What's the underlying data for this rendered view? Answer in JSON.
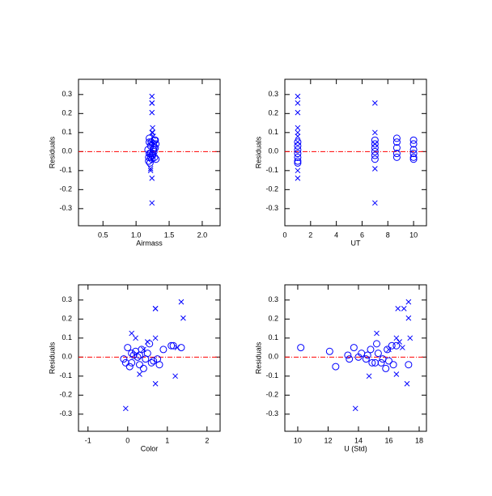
{
  "chart_data": [
    {
      "type": "scatter",
      "xlabel": "Airmass",
      "ylabel": "Residuals",
      "xlim": [
        0.13,
        2.27
      ],
      "ylim": [
        -0.39,
        0.38
      ],
      "xticks": [
        0.5,
        {
          "value": 1,
          "label": "1.0"
        },
        1.5,
        {
          "value": 2,
          "label": "2.0"
        }
      ],
      "yticks": [
        -0.3,
        -0.2,
        -0.1,
        {
          "value": 0,
          "label": "0.0"
        },
        0.1,
        0.2,
        0.3
      ],
      "reference_line": {
        "value": 0,
        "color": "#ff0000"
      },
      "series": [
        {
          "marker": "circle",
          "color": "#0000ff",
          "x": [
            1.2,
            1.22,
            1.18,
            1.2,
            1.22,
            1.19,
            1.21,
            1.28,
            1.26,
            1.29,
            1.27,
            1.25,
            1.3,
            1.2,
            1.23,
            1.27,
            1.25,
            1.19,
            1.29,
            1.3,
            1.26,
            1.22,
            1.28,
            1.24
          ],
          "values": [
            0.05,
            0.03,
            0.01,
            -0.01,
            -0.03,
            -0.05,
            -0.06,
            0.06,
            0.04,
            0.02,
            0,
            -0.02,
            -0.04,
            0.07,
            0.05,
            0.02,
            -0.01,
            -0.03,
            0.06,
            0.04,
            0.01,
            -0.01,
            -0.03,
            -0.04
          ]
        },
        {
          "marker": "x",
          "color": "#0000ff",
          "x": [
            1.24,
            1.24,
            1.24,
            1.25,
            1.24,
            1.26,
            1.23,
            1.22,
            1.24,
            1.24,
            1.25,
            1.22,
            1.24,
            1.28
          ],
          "values": [
            0.29,
            0.255,
            0.205,
            0.125,
            0.1,
            0.08,
            0.05,
            -0.1,
            -0.14,
            0.255,
            0.1,
            -0.09,
            -0.27,
            0.04
          ]
        }
      ]
    },
    {
      "type": "scatter",
      "xlabel": "UT",
      "ylabel": "Residuals",
      "xlim": [
        0,
        11
      ],
      "ylim": [
        -0.39,
        0.38
      ],
      "xticks": [
        0,
        2,
        4,
        6,
        8,
        10
      ],
      "yticks": [
        -0.3,
        -0.2,
        -0.1,
        {
          "value": 0,
          "label": "0.0"
        },
        0.1,
        0.2,
        0.3
      ],
      "reference_line": {
        "value": 0,
        "color": "#ff0000"
      },
      "series": [
        {
          "marker": "circle",
          "color": "#0000ff",
          "x": [
            1,
            1,
            1,
            1,
            1,
            1,
            1,
            7,
            7,
            7,
            7,
            7,
            7,
            8.7,
            8.7,
            8.7,
            8.7,
            8.7,
            10,
            10,
            10,
            10,
            10,
            10
          ],
          "values": [
            0.05,
            0.03,
            0.01,
            -0.01,
            -0.03,
            -0.05,
            -0.06,
            0.06,
            0.04,
            0.02,
            0,
            -0.02,
            -0.04,
            0.07,
            0.05,
            0.02,
            -0.01,
            -0.03,
            0.06,
            0.04,
            0.01,
            -0.01,
            -0.03,
            -0.04
          ]
        },
        {
          "marker": "x",
          "color": "#0000ff",
          "x": [
            1,
            1,
            1,
            1,
            1,
            1,
            1,
            1,
            1,
            7,
            7,
            7,
            7,
            7
          ],
          "values": [
            0.29,
            0.255,
            0.205,
            0.125,
            0.1,
            0.08,
            0.05,
            -0.1,
            -0.14,
            0.255,
            0.1,
            -0.09,
            -0.27,
            0.04
          ]
        }
      ]
    },
    {
      "type": "scatter",
      "xlabel": "Color",
      "ylabel": "Residuals",
      "xlim": [
        -1.24,
        2.33
      ],
      "ylim": [
        -0.39,
        0.38
      ],
      "xticks": [
        -1,
        0,
        1,
        2
      ],
      "yticks": [
        -0.3,
        -0.2,
        -0.1,
        {
          "value": 0,
          "label": "0.0"
        },
        0.1,
        0.2,
        0.3
      ],
      "reference_line": {
        "value": 0,
        "color": "#ff0000"
      },
      "series": [
        {
          "marker": "circle",
          "color": "#0000ff",
          "x": [
            0,
            0.2,
            0.3,
            -0.1,
            0.1,
            0.05,
            0.4,
            1.15,
            0.9,
            0.5,
            0.25,
            0.65,
            0.8,
            0.55,
            1.35,
            0.1,
            0.45,
            0.6,
            1.1,
            0.35,
            0.15,
            0.75,
            -0.05,
            0.3
          ],
          "values": [
            0.05,
            0.03,
            0.01,
            -0.01,
            -0.03,
            -0.05,
            -0.06,
            0.06,
            0.04,
            0.02,
            0,
            -0.02,
            -0.04,
            0.07,
            0.05,
            0.02,
            -0.01,
            -0.03,
            0.06,
            0.04,
            0.01,
            -0.01,
            -0.03,
            -0.04
          ]
        },
        {
          "marker": "x",
          "color": "#0000ff",
          "x": [
            1.35,
            0.7,
            1.4,
            0.1,
            0.7,
            0.5,
            1.25,
            1.2,
            0.7,
            0.7,
            0.2,
            0.3,
            -0.05,
            0.4
          ],
          "values": [
            0.29,
            0.255,
            0.205,
            0.125,
            0.1,
            0.08,
            0.05,
            -0.1,
            -0.14,
            0.255,
            0.1,
            -0.09,
            -0.27,
            0.04
          ]
        }
      ]
    },
    {
      "type": "scatter",
      "xlabel": "U (Std)",
      "ylabel": "Residuals",
      "xlim": [
        9.15,
        18.48
      ],
      "ylim": [
        -0.39,
        0.38
      ],
      "xticks": [
        10,
        12,
        14,
        16,
        18
      ],
      "yticks": [
        -0.3,
        -0.2,
        -0.1,
        {
          "value": 0,
          "label": "0.0"
        },
        0.1,
        0.2,
        0.3
      ],
      "reference_line": {
        "value": 0,
        "color": "#ff0000"
      },
      "series": [
        {
          "marker": "circle",
          "color": "#0000ff",
          "x": [
            10.2,
            12.1,
            13.3,
            14.5,
            15.1,
            12.5,
            15.8,
            16.5,
            14.8,
            15.3,
            14,
            16,
            16.3,
            15.2,
            13.7,
            14.2,
            15.6,
            14.9,
            16.2,
            15.9,
            14.6,
            13.4,
            15.5,
            17.3
          ],
          "values": [
            0.05,
            0.03,
            0.01,
            -0.01,
            -0.03,
            -0.05,
            -0.06,
            0.06,
            0.04,
            0.02,
            0,
            -0.02,
            -0.04,
            0.07,
            0.05,
            0.02,
            -0.01,
            -0.03,
            0.06,
            0.04,
            0.01,
            -0.01,
            -0.03,
            -0.04
          ]
        },
        {
          "marker": "x",
          "color": "#0000ff",
          "x": [
            17.3,
            17,
            17.3,
            15.2,
            17.4,
            16.7,
            16.9,
            14.7,
            17.2,
            16.6,
            16.5,
            16.5,
            13.8,
            16
          ],
          "values": [
            0.29,
            0.255,
            0.205,
            0.125,
            0.1,
            0.08,
            0.05,
            -0.1,
            -0.14,
            0.255,
            0.1,
            -0.09,
            -0.27,
            0.04
          ]
        }
      ]
    }
  ]
}
